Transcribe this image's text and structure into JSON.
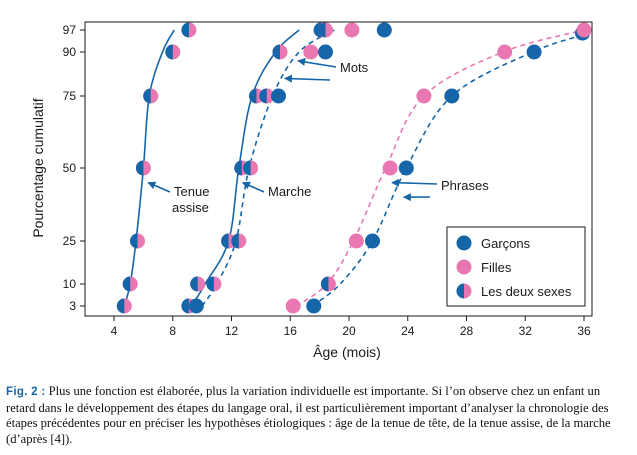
{
  "colors": {
    "boys": "#1565a8",
    "girls": "#e877b2",
    "frame": "#1a1a1a",
    "caption_label": "#1565a8"
  },
  "chart_data": {
    "type": "scatter",
    "xlabel": "Âge (mois)",
    "ylabel": "Pourcentage cumulatif",
    "xlim": [
      2,
      36
    ],
    "ylim": [
      0,
      100
    ],
    "x_ticks": [
      4,
      8,
      12,
      16,
      20,
      24,
      28,
      32,
      36
    ],
    "y_ticks": [
      3,
      10,
      25,
      50,
      75,
      90,
      97
    ],
    "y_scale": "probit",
    "grid": false,
    "legend_position": "bottom-right",
    "legend": [
      {
        "label": "Garçons",
        "marker": "boys"
      },
      {
        "label": "Filles",
        "marker": "girls"
      },
      {
        "label": "Les deux sexes",
        "marker": "both"
      }
    ],
    "milestones": [
      {
        "label": "Tenue assise",
        "line": "solid",
        "curve_x": [
          4.7,
          5.1,
          5.5,
          6.0,
          6.4,
          7.3,
          8.1
        ],
        "curve_y": [
          3,
          10,
          25,
          50,
          75,
          90,
          97
        ],
        "points": [
          {
            "x": 4.7,
            "y": 3,
            "type": "both"
          },
          {
            "x": 5.1,
            "y": 10,
            "type": "both"
          },
          {
            "x": 5.6,
            "y": 25,
            "type": "both"
          },
          {
            "x": 6.0,
            "y": 50,
            "type": "both"
          },
          {
            "x": 6.5,
            "y": 75,
            "type": "both"
          },
          {
            "x": 8.0,
            "y": 90,
            "type": "both"
          },
          {
            "x": 9.1,
            "y": 97,
            "type": "both"
          }
        ]
      },
      {
        "label": "Marche",
        "line": "solid",
        "curve_x": [
          9.3,
          10.2,
          11.8,
          12.5,
          13.4,
          15.0,
          16.6
        ],
        "curve_y": [
          3,
          10,
          25,
          50,
          75,
          90,
          97
        ],
        "points": [
          {
            "x": 9.1,
            "y": 3,
            "type": "both"
          },
          {
            "x": 9.7,
            "y": 10,
            "type": "both"
          },
          {
            "x": 10.8,
            "y": 10,
            "type": "both"
          },
          {
            "x": 11.8,
            "y": 25,
            "type": "both"
          },
          {
            "x": 12.5,
            "y": 25,
            "type": "both"
          },
          {
            "x": 12.7,
            "y": 50,
            "type": "both"
          },
          {
            "x": 13.3,
            "y": 50,
            "type": "both"
          },
          {
            "x": 13.7,
            "y": 75,
            "type": "both"
          },
          {
            "x": 15.3,
            "y": 90,
            "type": "both"
          },
          {
            "x": 18.1,
            "y": 97,
            "type": "both"
          }
        ]
      },
      {
        "label": "Mots",
        "line": "dashed",
        "curve_x": [
          10.0,
          11.0,
          12.3,
          13.2,
          14.8,
          16.6,
          19.0
        ],
        "curve_y": [
          3,
          10,
          25,
          50,
          75,
          90,
          97
        ],
        "points": [
          {
            "x": 9.6,
            "y": 3,
            "type": "boys"
          },
          {
            "x": 14.4,
            "y": 75,
            "type": "both"
          },
          {
            "x": 15.2,
            "y": 75,
            "type": "boys"
          },
          {
            "x": 17.4,
            "y": 90,
            "type": "girls"
          },
          {
            "x": 18.4,
            "y": 90,
            "type": "boys"
          },
          {
            "x": 18.4,
            "y": 97,
            "type": "both"
          },
          {
            "x": 20.2,
            "y": 97,
            "type": "girls"
          },
          {
            "x": 22.4,
            "y": 97,
            "type": "boys"
          }
        ]
      },
      {
        "label": "Phrases",
        "line": "dashed",
        "series": [
          {
            "name": "Filles",
            "curve_x": [
              16.4,
              18.5,
              20.3,
              22.5,
              25.1,
              30.5,
              36.0
            ],
            "curve_y": [
              3,
              10,
              25,
              50,
              75,
              90,
              97
            ]
          },
          {
            "name": "Garçons",
            "curve_x": [
              17.5,
              19.4,
              21.6,
              23.9,
              27.0,
              32.5,
              36.0
            ],
            "curve_y": [
              3,
              10,
              25,
              50,
              75,
              90,
              95.5
            ]
          }
        ],
        "points": [
          {
            "x": 16.2,
            "y": 3,
            "type": "girls"
          },
          {
            "x": 17.6,
            "y": 3,
            "type": "boys"
          },
          {
            "x": 18.6,
            "y": 10,
            "type": "both"
          },
          {
            "x": 20.5,
            "y": 25,
            "type": "girls"
          },
          {
            "x": 21.6,
            "y": 25,
            "type": "boys"
          },
          {
            "x": 22.8,
            "y": 50,
            "type": "girls"
          },
          {
            "x": 23.9,
            "y": 50,
            "type": "boys"
          },
          {
            "x": 25.1,
            "y": 75,
            "type": "girls"
          },
          {
            "x": 27.0,
            "y": 75,
            "type": "boys"
          },
          {
            "x": 30.6,
            "y": 90,
            "type": "girls"
          },
          {
            "x": 32.6,
            "y": 90,
            "type": "boys"
          },
          {
            "x": 35.9,
            "y": 96,
            "type": "boys"
          },
          {
            "x": 36.0,
            "y": 97,
            "type": "girls"
          }
        ]
      }
    ],
    "annotations": [
      {
        "text": "Tenue",
        "line2": "assise",
        "arrow_to": {
          "x": 6.2,
          "y": 45
        }
      },
      {
        "text": "Marche",
        "arrow_to": {
          "x": 12.5,
          "y": 45
        }
      },
      {
        "text": "Mots",
        "arrow_to": [
          {
            "x": 16.4,
            "y": 87
          },
          {
            "x": 15.5,
            "y": 81
          }
        ]
      },
      {
        "text": "Phrases",
        "arrow_to": [
          {
            "x": 22.8,
            "y": 45
          },
          {
            "x": 23.6,
            "y": 40
          }
        ]
      }
    ]
  },
  "caption": {
    "label": "Fig. 2 :",
    "text": " Plus une fonction est élaborée, plus la variation individuelle est importante. Si l’on observe chez un enfant un retard dans le développement des étapes du langage oral, il est particulièrement important d’analyser la chronologie des étapes précédentes pour en préciser les hypothèses étiologiques : âge de la tenue de tête, de la tenue assise, de la marche (d’après [4])."
  }
}
